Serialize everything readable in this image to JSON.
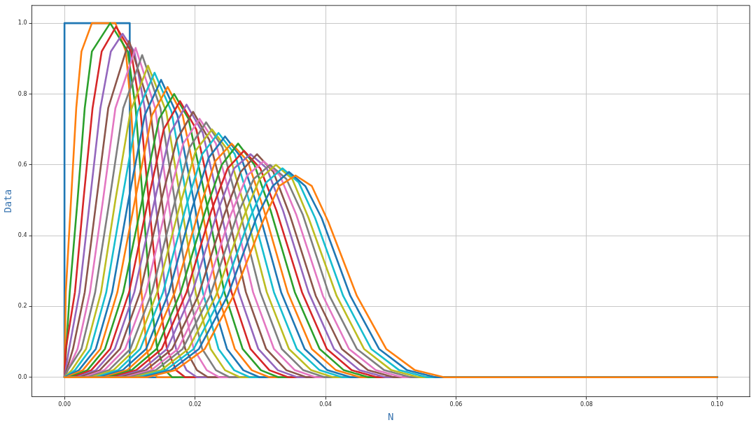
{
  "chart_data": {
    "type": "line",
    "xlabel": "N",
    "ylabel": "Data",
    "grid": true,
    "legend": false,
    "xlim": [
      -0.005,
      0.105
    ],
    "ylim": [
      -0.055,
      1.05
    ],
    "xticks": [
      {
        "value": 0,
        "label": "0.00"
      },
      {
        "value": 0.02,
        "label": "0.02"
      },
      {
        "value": 0.04,
        "label": "0.04"
      },
      {
        "value": 0.06,
        "label": "0.06"
      },
      {
        "value": 0.08,
        "label": "0.08"
      },
      {
        "value": 0.1,
        "label": "0.10"
      }
    ],
    "yticks": [
      {
        "value": 0,
        "label": "0.0"
      },
      {
        "value": 0.2,
        "label": "0.2"
      },
      {
        "value": 0.4,
        "label": "0.4"
      },
      {
        "value": 0.6,
        "label": "0.6"
      },
      {
        "value": 0.8,
        "label": "0.8"
      },
      {
        "value": 1,
        "label": "1.0"
      }
    ],
    "series": [
      {
        "color": "#1f77b4",
        "x": [
          0,
          0,
          0.01,
          0.01,
          0.1
        ],
        "values": [
          0,
          1,
          1,
          0,
          0
        ]
      },
      {
        "color": "#ff7f0e",
        "x": [
          0,
          0.0002,
          0.001,
          0.0018,
          0.0026,
          0.0042,
          0.006,
          0.0078,
          0.0094,
          0.0102,
          0.011,
          0.0118,
          0.0126,
          0.0134,
          0.0142,
          0.1
        ],
        "values": [
          0,
          0.24,
          0.5,
          0.76,
          0.92,
          1,
          1,
          1,
          0.92,
          0.76,
          0.5,
          0.24,
          0.08,
          0.02,
          0,
          0
        ]
      },
      {
        "color": "#2ca02c",
        "x": [
          0,
          0.0008,
          0.002,
          0.0031,
          0.0042,
          0.007,
          0.0097,
          0.0109,
          0.012,
          0.0131,
          0.0142,
          0.0154,
          0.0165,
          0.1
        ],
        "values": [
          0,
          0.24,
          0.5,
          0.76,
          0.92,
          1,
          0.92,
          0.76,
          0.5,
          0.24,
          0.08,
          0.02,
          0,
          0
        ]
      },
      {
        "color": "#d62728",
        "x": [
          0,
          0.0002,
          0.0016,
          0.0029,
          0.0043,
          0.0057,
          0.0079,
          0.0102,
          0.0116,
          0.0129,
          0.0143,
          0.0157,
          0.0171,
          0.0185,
          0.1
        ],
        "values": [
          0,
          0.08,
          0.24,
          0.5,
          0.76,
          0.92,
          0.99,
          0.92,
          0.76,
          0.5,
          0.24,
          0.08,
          0.02,
          0,
          0
        ]
      },
      {
        "color": "#9467bd",
        "x": [
          0,
          0.0007,
          0.0023,
          0.0039,
          0.0055,
          0.0071,
          0.0089,
          0.0107,
          0.0123,
          0.0139,
          0.0155,
          0.0171,
          0.0187,
          0.0203,
          0.1
        ],
        "values": [
          0,
          0.08,
          0.24,
          0.5,
          0.76,
          0.92,
          0.97,
          0.92,
          0.76,
          0.5,
          0.24,
          0.08,
          0.02,
          0,
          0
        ]
      },
      {
        "color": "#8c564b",
        "x": [
          0,
          0.0013,
          0.0031,
          0.0049,
          0.0067,
          0.0099,
          0.0131,
          0.0149,
          0.0167,
          0.0185,
          0.0203,
          0.022,
          0.1
        ],
        "values": [
          0,
          0.08,
          0.24,
          0.5,
          0.76,
          0.95,
          0.76,
          0.5,
          0.24,
          0.08,
          0.02,
          0,
          0
        ]
      },
      {
        "color": "#e377c2",
        "x": [
          0,
          0.002,
          0.0039,
          0.0059,
          0.0078,
          0.0109,
          0.0139,
          0.0159,
          0.0178,
          0.0198,
          0.0218,
          0.0237,
          0.1
        ],
        "values": [
          0,
          0.08,
          0.24,
          0.5,
          0.76,
          0.93,
          0.76,
          0.5,
          0.24,
          0.08,
          0.02,
          0,
          0
        ]
      },
      {
        "color": "#7f7f7f",
        "x": [
          0,
          0.0005,
          0.0026,
          0.0047,
          0.0069,
          0.009,
          0.0119,
          0.0147,
          0.0169,
          0.019,
          0.0211,
          0.0232,
          0.0253,
          0.1
        ],
        "values": [
          0,
          0.02,
          0.08,
          0.24,
          0.5,
          0.76,
          0.91,
          0.76,
          0.5,
          0.24,
          0.08,
          0.02,
          0,
          0
        ]
      },
      {
        "color": "#bcbd22",
        "x": [
          0,
          0.0011,
          0.0033,
          0.0056,
          0.0078,
          0.0101,
          0.0128,
          0.0156,
          0.0178,
          0.0201,
          0.0224,
          0.0246,
          0.0269,
          0.1
        ],
        "values": [
          0,
          0.02,
          0.08,
          0.24,
          0.5,
          0.75,
          0.88,
          0.75,
          0.5,
          0.24,
          0.08,
          0.02,
          0,
          0
        ]
      },
      {
        "color": "#17becf",
        "x": [
          0,
          0.0016,
          0.004,
          0.0064,
          0.0088,
          0.0112,
          0.0138,
          0.0164,
          0.0188,
          0.0212,
          0.0236,
          0.026,
          0.0284,
          0.1
        ],
        "values": [
          0,
          0.02,
          0.08,
          0.24,
          0.5,
          0.75,
          0.86,
          0.75,
          0.5,
          0.24,
          0.08,
          0.02,
          0,
          0
        ]
      },
      {
        "color": "#1f77b4",
        "x": [
          0,
          0.0022,
          0.0048,
          0.0073,
          0.0098,
          0.0123,
          0.0148,
          0.0173,
          0.0198,
          0.0223,
          0.0249,
          0.0274,
          0.0299,
          0.1
        ],
        "values": [
          0,
          0.02,
          0.08,
          0.24,
          0.5,
          0.74,
          0.84,
          0.74,
          0.5,
          0.24,
          0.08,
          0.02,
          0,
          0
        ]
      },
      {
        "color": "#ff7f0e",
        "x": [
          0,
          0.0002,
          0.0028,
          0.0055,
          0.0081,
          0.0108,
          0.0134,
          0.0158,
          0.0181,
          0.0208,
          0.0234,
          0.0261,
          0.0287,
          0.0314,
          0.1
        ],
        "values": [
          0,
          0,
          0.02,
          0.08,
          0.24,
          0.5,
          0.74,
          0.82,
          0.74,
          0.5,
          0.24,
          0.08,
          0.02,
          0,
          0
        ]
      },
      {
        "color": "#2ca02c",
        "x": [
          0,
          0.0007,
          0.0035,
          0.0062,
          0.009,
          0.0118,
          0.0145,
          0.0168,
          0.019,
          0.0218,
          0.0245,
          0.0273,
          0.0301,
          0.0328,
          0.1
        ],
        "values": [
          0,
          0,
          0.02,
          0.08,
          0.24,
          0.49,
          0.73,
          0.8,
          0.73,
          0.49,
          0.24,
          0.08,
          0.02,
          0,
          0
        ]
      },
      {
        "color": "#d62728",
        "x": [
          0,
          0.0012,
          0.0041,
          0.007,
          0.0099,
          0.0127,
          0.0152,
          0.0177,
          0.0202,
          0.0227,
          0.0256,
          0.0285,
          0.0314,
          0.0343,
          0.1
        ],
        "values": [
          0,
          0,
          0.02,
          0.08,
          0.24,
          0.49,
          0.7,
          0.78,
          0.7,
          0.49,
          0.24,
          0.08,
          0.02,
          0,
          0
        ]
      },
      {
        "color": "#9467bd",
        "x": [
          0,
          0.0018,
          0.0048,
          0.0077,
          0.0107,
          0.0137,
          0.0162,
          0.0187,
          0.0212,
          0.0237,
          0.0267,
          0.0297,
          0.0327,
          0.0357,
          0.1
        ],
        "values": [
          0,
          0,
          0.02,
          0.08,
          0.24,
          0.49,
          0.69,
          0.77,
          0.69,
          0.49,
          0.24,
          0.08,
          0.02,
          0,
          0
        ]
      },
      {
        "color": "#8c564b",
        "x": [
          0,
          0.0023,
          0.0054,
          0.0085,
          0.0116,
          0.0147,
          0.0172,
          0.0197,
          0.0222,
          0.0247,
          0.0278,
          0.0309,
          0.034,
          0.0371,
          0.1
        ],
        "values": [
          0,
          0,
          0.02,
          0.08,
          0.24,
          0.49,
          0.67,
          0.75,
          0.67,
          0.49,
          0.24,
          0.08,
          0.02,
          0,
          0
        ]
      },
      {
        "color": "#e377c2",
        "x": [
          0,
          0.0029,
          0.0061,
          0.0093,
          0.0125,
          0.0157,
          0.0182,
          0.0207,
          0.0232,
          0.0257,
          0.0289,
          0.0321,
          0.0353,
          0.0385,
          0.1
        ],
        "values": [
          0,
          0,
          0.02,
          0.08,
          0.24,
          0.49,
          0.66,
          0.73,
          0.66,
          0.49,
          0.24,
          0.08,
          0.02,
          0,
          0
        ]
      },
      {
        "color": "#7f7f7f",
        "x": [
          0,
          0.0035,
          0.0068,
          0.0101,
          0.0134,
          0.0167,
          0.0192,
          0.0217,
          0.0242,
          0.0267,
          0.03,
          0.0333,
          0.0366,
          0.0399,
          0.1
        ],
        "values": [
          0,
          0,
          0.02,
          0.08,
          0.24,
          0.48,
          0.65,
          0.72,
          0.65,
          0.48,
          0.24,
          0.08,
          0.02,
          0,
          0
        ]
      },
      {
        "color": "#bcbd22",
        "x": [
          0,
          0.0041,
          0.0075,
          0.0109,
          0.0142,
          0.0176,
          0.0201,
          0.0226,
          0.0251,
          0.0276,
          0.031,
          0.0344,
          0.0378,
          0.0412,
          0.1
        ],
        "values": [
          0,
          0,
          0.02,
          0.08,
          0.24,
          0.48,
          0.64,
          0.7,
          0.64,
          0.48,
          0.24,
          0.08,
          0.02,
          0,
          0
        ]
      },
      {
        "color": "#17becf",
        "x": [
          0,
          0.0047,
          0.0082,
          0.0116,
          0.0151,
          0.0186,
          0.0211,
          0.0236,
          0.0261,
          0.0286,
          0.0321,
          0.0356,
          0.0391,
          0.0426,
          0.1
        ],
        "values": [
          0,
          0,
          0.02,
          0.08,
          0.24,
          0.48,
          0.63,
          0.69,
          0.63,
          0.48,
          0.24,
          0.08,
          0.02,
          0,
          0
        ]
      },
      {
        "color": "#1f77b4",
        "x": [
          0,
          0.0053,
          0.0089,
          0.0125,
          0.016,
          0.0196,
          0.0221,
          0.0246,
          0.0271,
          0.0296,
          0.0332,
          0.0368,
          0.0403,
          0.0439,
          0.1
        ],
        "values": [
          0,
          0,
          0.02,
          0.08,
          0.24,
          0.48,
          0.62,
          0.68,
          0.62,
          0.48,
          0.24,
          0.08,
          0.02,
          0,
          0
        ]
      },
      {
        "color": "#ff7f0e",
        "x": [
          0,
          0.0059,
          0.0096,
          0.0132,
          0.0169,
          0.0206,
          0.0231,
          0.0256,
          0.0281,
          0.0306,
          0.0342,
          0.0379,
          0.0416,
          0.0453,
          0.1
        ],
        "values": [
          0,
          0,
          0.02,
          0.08,
          0.24,
          0.47,
          0.61,
          0.66,
          0.61,
          0.47,
          0.24,
          0.08,
          0.02,
          0,
          0
        ]
      },
      {
        "color": "#2ca02c",
        "x": [
          0,
          0.0066,
          0.0103,
          0.0141,
          0.0178,
          0.0216,
          0.0241,
          0.0266,
          0.0291,
          0.0316,
          0.0353,
          0.0391,
          0.0428,
          0.0466,
          0.1
        ],
        "values": [
          0,
          0,
          0.02,
          0.08,
          0.24,
          0.47,
          0.6,
          0.66,
          0.6,
          0.47,
          0.24,
          0.08,
          0.02,
          0,
          0
        ]
      },
      {
        "color": "#d62728",
        "x": [
          0,
          0.0072,
          0.011,
          0.0149,
          0.0187,
          0.0225,
          0.025,
          0.0275,
          0.03,
          0.0325,
          0.0364,
          0.0402,
          0.044,
          0.0479,
          0.1
        ],
        "values": [
          0,
          0,
          0.02,
          0.08,
          0.24,
          0.47,
          0.59,
          0.64,
          0.59,
          0.47,
          0.24,
          0.08,
          0.02,
          0,
          0
        ]
      },
      {
        "color": "#9467bd",
        "x": [
          0,
          0.0079,
          0.0118,
          0.0157,
          0.0196,
          0.0235,
          0.026,
          0.0285,
          0.031,
          0.0335,
          0.0374,
          0.0413,
          0.0452,
          0.0492,
          0.1
        ],
        "values": [
          0,
          0,
          0.02,
          0.08,
          0.24,
          0.47,
          0.59,
          0.63,
          0.59,
          0.47,
          0.24,
          0.08,
          0.02,
          0,
          0
        ]
      },
      {
        "color": "#8c564b",
        "x": [
          0,
          0.0085,
          0.0125,
          0.0165,
          0.0205,
          0.0245,
          0.027,
          0.0295,
          0.032,
          0.0345,
          0.0385,
          0.0425,
          0.0465,
          0.0505,
          0.1
        ],
        "values": [
          0,
          0,
          0.02,
          0.08,
          0.23,
          0.46,
          0.58,
          0.63,
          0.58,
          0.46,
          0.23,
          0.08,
          0.02,
          0,
          0
        ]
      },
      {
        "color": "#e377c2",
        "x": [
          0,
          0.0092,
          0.0133,
          0.0174,
          0.0214,
          0.0255,
          0.028,
          0.0305,
          0.033,
          0.0355,
          0.0396,
          0.0436,
          0.0477,
          0.0518,
          0.1
        ],
        "values": [
          0,
          0,
          0.02,
          0.08,
          0.23,
          0.46,
          0.57,
          0.61,
          0.57,
          0.46,
          0.23,
          0.08,
          0.02,
          0,
          0
        ]
      },
      {
        "color": "#7f7f7f",
        "x": [
          0,
          0.0098,
          0.014,
          0.0181,
          0.0223,
          0.0265,
          0.029,
          0.0315,
          0.034,
          0.0365,
          0.0406,
          0.0448,
          0.049,
          0.0531,
          0.1
        ],
        "values": [
          0,
          0,
          0.02,
          0.08,
          0.23,
          0.46,
          0.56,
          0.6,
          0.56,
          0.46,
          0.23,
          0.08,
          0.02,
          0,
          0
        ]
      },
      {
        "color": "#bcbd22",
        "x": [
          0,
          0.0105,
          0.0148,
          0.019,
          0.0232,
          0.0274,
          0.0299,
          0.0324,
          0.0349,
          0.0374,
          0.0417,
          0.0459,
          0.0501,
          0.0544,
          0.1
        ],
        "values": [
          0,
          0,
          0.02,
          0.08,
          0.23,
          0.45,
          0.56,
          0.6,
          0.56,
          0.45,
          0.23,
          0.08,
          0.02,
          0,
          0
        ]
      },
      {
        "color": "#17becf",
        "x": [
          0,
          0.0112,
          0.0155,
          0.0198,
          0.0241,
          0.0284,
          0.0309,
          0.0334,
          0.0359,
          0.0384,
          0.0427,
          0.047,
          0.0513,
          0.0556,
          0.1
        ],
        "values": [
          0,
          0,
          0.02,
          0.08,
          0.23,
          0.45,
          0.55,
          0.59,
          0.55,
          0.45,
          0.23,
          0.08,
          0.02,
          0,
          0
        ]
      },
      {
        "color": "#1f77b4",
        "x": [
          0,
          0.0119,
          0.0163,
          0.0206,
          0.025,
          0.0294,
          0.0319,
          0.0344,
          0.0369,
          0.0394,
          0.0438,
          0.0482,
          0.0525,
          0.0569,
          0.1
        ],
        "values": [
          0,
          0,
          0.02,
          0.08,
          0.23,
          0.45,
          0.54,
          0.58,
          0.54,
          0.45,
          0.23,
          0.08,
          0.02,
          0,
          0
        ]
      },
      {
        "color": "#ff7f0e",
        "x": [
          0,
          0.0126,
          0.017,
          0.0215,
          0.0259,
          0.0304,
          0.0329,
          0.0354,
          0.0379,
          0.0404,
          0.0448,
          0.0493,
          0.0537,
          0.0582,
          0.1
        ],
        "values": [
          0,
          0,
          0.02,
          0.08,
          0.23,
          0.44,
          0.54,
          0.57,
          0.54,
          0.44,
          0.23,
          0.08,
          0.02,
          0,
          0
        ]
      }
    ]
  }
}
